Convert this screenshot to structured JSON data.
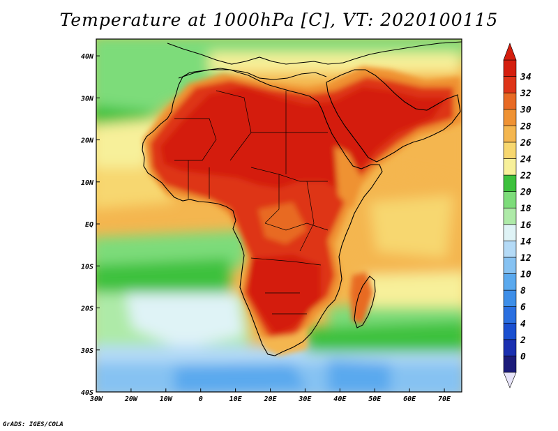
{
  "title": "Temperature at 1000hPa [C], VT: 2020100115",
  "credit": "GrADS: IGES/COLA",
  "map": {
    "lon_labels": [
      "30W",
      "20W",
      "10W",
      "0",
      "10E",
      "20E",
      "30E",
      "40E",
      "50E",
      "60E",
      "70E"
    ],
    "lon_values": [
      -30,
      -20,
      -10,
      0,
      10,
      20,
      30,
      40,
      50,
      60,
      70
    ],
    "lat_labels": [
      "40N",
      "30N",
      "20N",
      "10N",
      "EQ",
      "10S",
      "20S",
      "30S",
      "40S"
    ],
    "lat_values": [
      40,
      30,
      20,
      10,
      0,
      -10,
      -20,
      -30,
      -40
    ],
    "lon_range": [
      -30,
      75
    ],
    "lat_range": [
      -40,
      44
    ]
  },
  "colorbar": {
    "levels": [
      0,
      2,
      4,
      6,
      8,
      10,
      12,
      14,
      16,
      18,
      20,
      22,
      24,
      26,
      28,
      30,
      32,
      34
    ],
    "labels": [
      "0",
      "2",
      "4",
      "6",
      "8",
      "10",
      "12",
      "14",
      "16",
      "18",
      "20",
      "22",
      "24",
      "26",
      "28",
      "30",
      "32",
      "34"
    ],
    "colors": [
      "#1b1b7a",
      "#1a2fb0",
      "#1a4fd0",
      "#2a6fe0",
      "#3d8ee8",
      "#5aa9ee",
      "#86c2f2",
      "#b4daf6",
      "#dff3f6",
      "#aeeaa8",
      "#7ddc7a",
      "#3cc13c",
      "#f7f09a",
      "#f7d76f",
      "#f4b64f",
      "#ef9233",
      "#e86a24",
      "#de3418",
      "#d41e0e"
    ],
    "under_color": "#e7e4f9",
    "over_color": "#d41e0e"
  }
}
